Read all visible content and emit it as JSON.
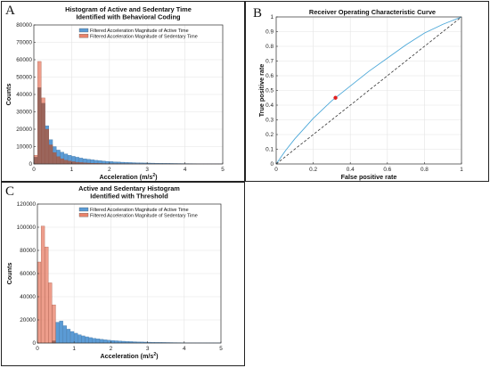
{
  "colors": {
    "active": "#5b9bd5",
    "sedentary": "#e8826a",
    "overlap": "#8b5a4e",
    "roc": "#4aa7d8",
    "marker": "#e02020"
  },
  "chart_data": [
    {
      "panel": "A",
      "type": "bar",
      "title_lines": [
        "Histogram of Active and Sedentary Time",
        "Identified with Behavioral Coding"
      ],
      "xlabel": "Acceleration (m/s",
      "xlabel_sup": "2",
      "xlabel_end": ")",
      "ylabel": "Counts",
      "xlim": [
        0,
        5
      ],
      "ylim": [
        0,
        80000
      ],
      "xticks": [
        0,
        1,
        2,
        3,
        4,
        5
      ],
      "yticks": [
        0,
        10000,
        20000,
        30000,
        40000,
        50000,
        60000,
        70000,
        80000
      ],
      "legend_position": "top-right",
      "grid": true,
      "bin_width": 0.1,
      "series": [
        {
          "name": "Filtered Acceleration Magnitude of Active Time",
          "color_key": "active",
          "values": [
            4000,
            44000,
            35000,
            22000,
            14000,
            10000,
            8000,
            6800,
            5800,
            5000,
            4400,
            3900,
            3400,
            3000,
            2700,
            2400,
            2100,
            1900,
            1700,
            1500,
            1350,
            1200,
            1100,
            1000,
            900,
            820,
            750,
            680,
            620,
            570,
            520,
            480,
            440,
            400,
            370,
            340,
            310,
            290,
            270,
            250,
            230,
            210,
            195,
            180,
            165,
            150,
            140,
            130,
            120,
            110
          ]
        },
        {
          "name": "Filtered Acceleration Magnitude of Sedentary Time",
          "color_key": "sedentary",
          "values": [
            5000,
            59000,
            38000,
            20000,
            11000,
            6500,
            4200,
            3000,
            2200,
            1700,
            1300,
            1000,
            800,
            650,
            520,
            420,
            350,
            290,
            240,
            200,
            170,
            140,
            120,
            100,
            85,
            70,
            60,
            50,
            42,
            35,
            30,
            25,
            21,
            18,
            15,
            13,
            11,
            9,
            8,
            7,
            6,
            5,
            4,
            4,
            3,
            3,
            2,
            2,
            2,
            1
          ]
        }
      ]
    },
    {
      "panel": "B",
      "type": "line",
      "title": "Receiver Operating Characteristic Curve",
      "xlabel": "False positive rate",
      "ylabel": "True positive rate",
      "xlim": [
        0,
        1
      ],
      "ylim": [
        0,
        1
      ],
      "xticks": [
        0,
        0.2,
        0.4,
        0.6,
        0.8,
        1
      ],
      "yticks": [
        0,
        0.1,
        0.2,
        0.3,
        0.4,
        0.5,
        0.6,
        0.7,
        0.8,
        0.9,
        1
      ],
      "grid": true,
      "series": [
        {
          "color_key": "roc",
          "x": [
            0,
            0.05,
            0.1,
            0.15,
            0.2,
            0.25,
            0.3,
            0.35,
            0.4,
            0.5,
            0.6,
            0.7,
            0.8,
            0.9,
            1
          ],
          "y": [
            0,
            0.09,
            0.17,
            0.24,
            0.31,
            0.37,
            0.43,
            0.48,
            0.53,
            0.63,
            0.72,
            0.81,
            0.89,
            0.95,
            1
          ]
        },
        {
          "style": "dashed",
          "x": [
            0,
            1
          ],
          "y": [
            0,
            1
          ]
        }
      ],
      "marker": {
        "x": 0.32,
        "y": 0.45
      }
    },
    {
      "panel": "C",
      "type": "bar",
      "title_lines": [
        "Active and Sedentary Histogram",
        "Identified with Threshold"
      ],
      "xlabel": "Acceleration (m/s",
      "xlabel_sup": "2",
      "xlabel_end": ")",
      "ylabel": "Counts",
      "xlim": [
        0,
        5
      ],
      "ylim": [
        0,
        120000
      ],
      "xticks": [
        0,
        1,
        2,
        3,
        4,
        5
      ],
      "yticks": [
        0,
        20000,
        40000,
        60000,
        80000,
        100000,
        120000
      ],
      "legend_position": "top-right",
      "grid": true,
      "bin_width": 0.1,
      "series": [
        {
          "name": "Filtered Acceleration Magnitude of Active Time",
          "color_key": "active",
          "values": [
            0,
            0,
            0,
            0,
            2000,
            18000,
            19000,
            15000,
            12000,
            10000,
            8500,
            7200,
            6200,
            5400,
            4700,
            4100,
            3600,
            3200,
            2800,
            2500,
            2200,
            1950,
            1750,
            1550,
            1400,
            1250,
            1120,
            1000,
            900,
            810,
            730,
            660,
            600,
            540,
            490,
            440,
            400,
            360,
            330,
            300,
            270,
            250,
            230,
            210,
            190,
            170,
            160,
            150,
            140,
            130
          ]
        },
        {
          "name": "Filtered Acceleration Magnitude of Sedentary Time",
          "color_key": "sedentary",
          "values": [
            70000,
            101000,
            83000,
            52000,
            33000,
            0,
            0,
            0,
            0,
            0,
            0,
            0,
            0,
            0,
            0,
            0,
            0,
            0,
            0,
            0,
            0,
            0,
            0,
            0,
            0,
            0,
            0,
            0,
            0,
            0,
            0,
            0,
            0,
            0,
            0,
            0,
            0,
            0,
            0,
            0,
            0,
            0,
            0,
            0,
            0,
            0,
            0,
            0,
            0,
            0
          ]
        }
      ]
    }
  ],
  "panel_labels": {
    "a": "A",
    "b": "B",
    "c": "C"
  }
}
